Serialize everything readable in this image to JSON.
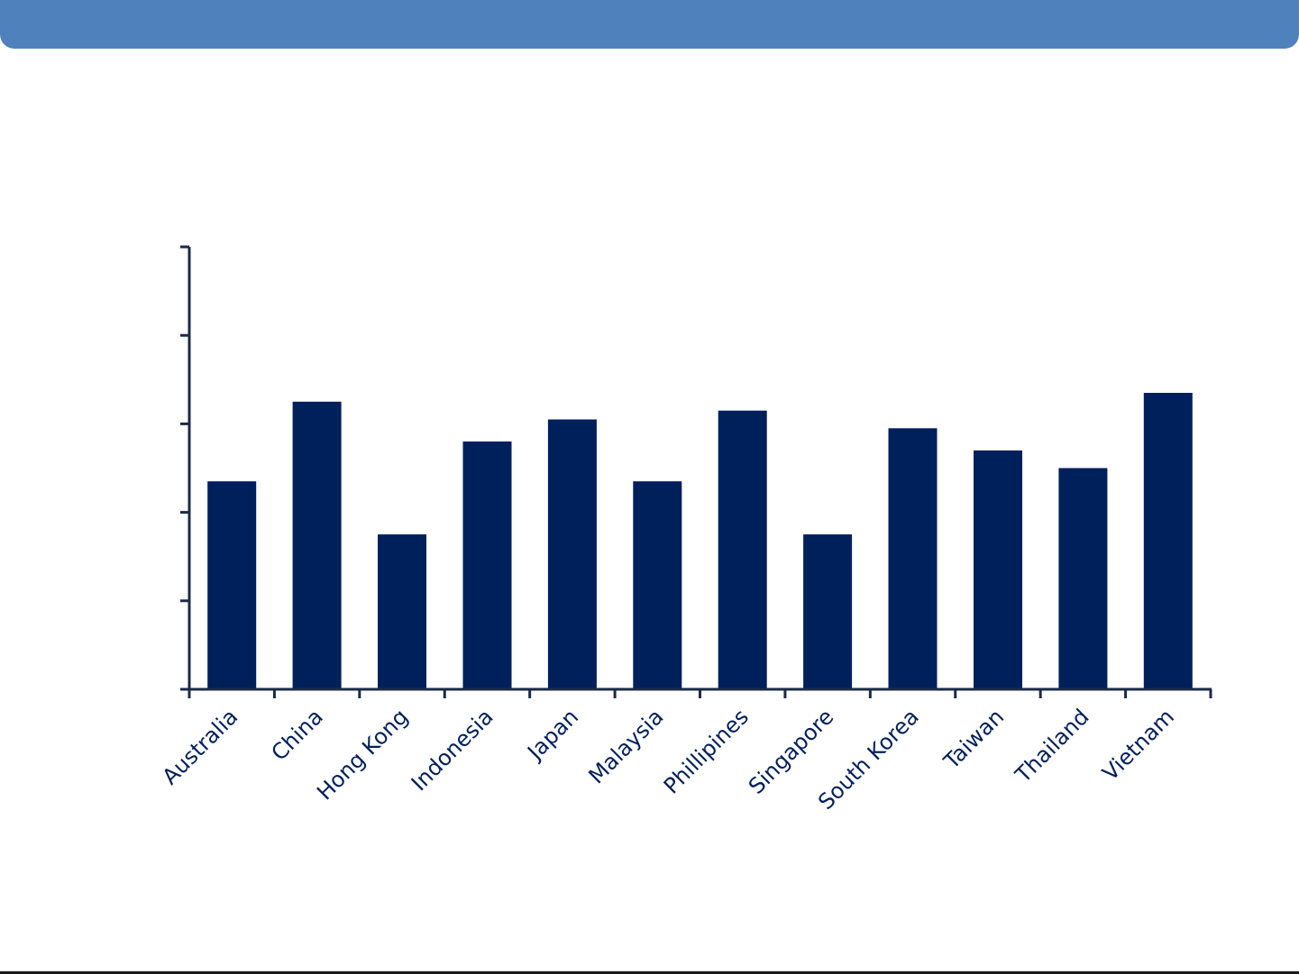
{
  "colors": {
    "header": "#4f81bd",
    "bar": "#00205b",
    "axis": "#1c2a48",
    "label": "#00205b"
  },
  "chart_data": {
    "type": "bar",
    "title": "",
    "xlabel": "",
    "ylabel": "",
    "categories": [
      "Australia",
      "China",
      "Hong Kong",
      "Indonesia",
      "Japan",
      "Malaysia",
      "Phillipines",
      "Singapore",
      "South Korea",
      "Taiwan",
      "Thailand",
      "Vietnam"
    ],
    "values": [
      2.35,
      3.25,
      1.75,
      2.8,
      3.05,
      2.35,
      3.15,
      1.75,
      2.95,
      2.7,
      2.5,
      3.35
    ],
    "ylim": [
      0,
      5
    ],
    "y_ticks": [
      0,
      1,
      2,
      3,
      4,
      5
    ],
    "y_tick_labels_visible": false,
    "grid": false,
    "legend": "none"
  }
}
